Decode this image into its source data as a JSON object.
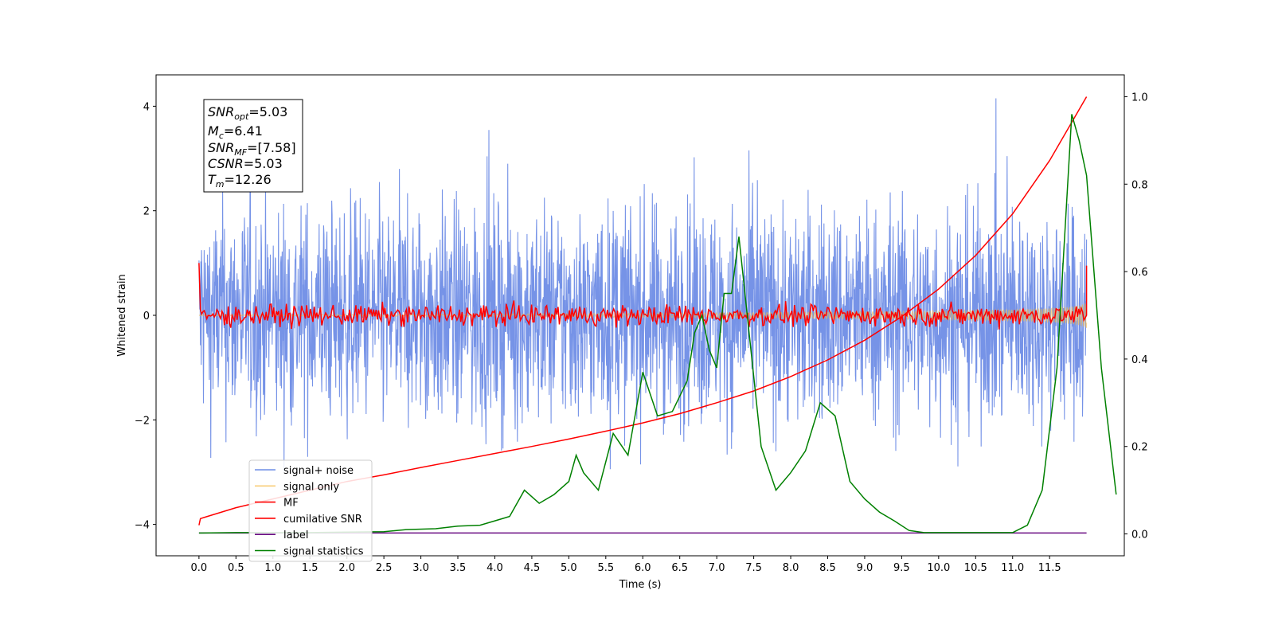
{
  "chart_data": {
    "type": "line",
    "xlabel": "Time (s)",
    "ylabel": "Whitened strain",
    "xlim": [
      -0.58,
      12.51
    ],
    "ylim": [
      -4.6,
      4.6
    ],
    "ylim_right": [
      -0.05,
      1.05
    ],
    "x_ticks": [
      "0.0",
      "0.5",
      "1.0",
      "1.5",
      "2.0",
      "2.5",
      "3.0",
      "3.5",
      "4.0",
      "4.5",
      "5.0",
      "5.5",
      "6.0",
      "6.5",
      "7.0",
      "7.5",
      "8.0",
      "8.5",
      "9.0",
      "9.5",
      "10.0",
      "10.5",
      "11.0",
      "11.5"
    ],
    "y_ticks_left": [
      "4",
      "2",
      "0",
      "−2",
      "−4"
    ],
    "y_ticks_right": [
      "1.0",
      "0.8",
      "0.6",
      "0.4",
      "0.2",
      "0.0"
    ],
    "grid": false,
    "legend_position": "lower-left",
    "annotation": {
      "snr_opt": {
        "name": "SNR",
        "sub": "opt",
        "value": "=5.03"
      },
      "mc": {
        "name": "M",
        "sub": "c",
        "value": "=6.41"
      },
      "snr_mf": {
        "name": "SNR",
        "sub": "MF",
        "value": "=[7.58]"
      },
      "csnr": {
        "name": "CSNR",
        "sub": "",
        "value": "=5.03"
      },
      "tm": {
        "name": "T",
        "sub": "m",
        "value": "=12.26"
      }
    },
    "series": [
      {
        "name": "signal+ noise",
        "color": "#6f8de6",
        "axis": "left",
        "kind": "noise",
        "envelope": 2.6,
        "time_range": [
          0,
          12.0
        ]
      },
      {
        "name": "signal only",
        "color": "#f5b942",
        "axis": "left",
        "kind": "chirp",
        "amplitude_end": 0.25,
        "time_range": [
          0,
          12.0
        ]
      },
      {
        "name": "MF",
        "color": "#ff0000",
        "axis": "left",
        "kind": "mf",
        "points": [
          [
            0,
            1.0
          ],
          [
            0.02,
            0.1
          ],
          [
            12.0,
            0.0
          ],
          [
            12.0,
            0.95
          ]
        ]
      },
      {
        "name": "cumilative SNR",
        "color": "#ff0000",
        "axis": "right",
        "points": [
          [
            0,
            0.02
          ],
          [
            0.02,
            0.035
          ],
          [
            0.5,
            0.06
          ],
          [
            1,
            0.08
          ],
          [
            1.5,
            0.1
          ],
          [
            2,
            0.12
          ],
          [
            2.5,
            0.135
          ],
          [
            3,
            0.152
          ],
          [
            3.5,
            0.168
          ],
          [
            4,
            0.184
          ],
          [
            4.5,
            0.2
          ],
          [
            5,
            0.217
          ],
          [
            5.5,
            0.235
          ],
          [
            6,
            0.254
          ],
          [
            6.5,
            0.275
          ],
          [
            7,
            0.3
          ],
          [
            7.5,
            0.327
          ],
          [
            8,
            0.36
          ],
          [
            8.5,
            0.398
          ],
          [
            9,
            0.443
          ],
          [
            9.5,
            0.497
          ],
          [
            10,
            0.56
          ],
          [
            10.5,
            0.637
          ],
          [
            11,
            0.732
          ],
          [
            11.5,
            0.854
          ],
          [
            12,
            1.0
          ]
        ]
      },
      {
        "name": "label",
        "color": "#6a0d83",
        "axis": "right",
        "points": [
          [
            0,
            0.002
          ],
          [
            12,
            0.002
          ]
        ]
      },
      {
        "name": "signal statistics",
        "color": "#008000",
        "axis": "right",
        "points": [
          [
            0,
            0.002
          ],
          [
            0.5,
            0.003
          ],
          [
            1,
            0.003
          ],
          [
            1.5,
            0.003
          ],
          [
            2,
            0.004
          ],
          [
            2.5,
            0.005
          ],
          [
            2.8,
            0.01
          ],
          [
            3.2,
            0.012
          ],
          [
            3.5,
            0.018
          ],
          [
            3.8,
            0.02
          ],
          [
            4,
            0.03
          ],
          [
            4.2,
            0.04
          ],
          [
            4.4,
            0.1
          ],
          [
            4.6,
            0.07
          ],
          [
            4.8,
            0.09
          ],
          [
            5,
            0.12
          ],
          [
            5.1,
            0.18
          ],
          [
            5.2,
            0.14
          ],
          [
            5.4,
            0.1
          ],
          [
            5.6,
            0.23
          ],
          [
            5.8,
            0.18
          ],
          [
            6.0,
            0.37
          ],
          [
            6.2,
            0.27
          ],
          [
            6.4,
            0.28
          ],
          [
            6.6,
            0.35
          ],
          [
            6.7,
            0.46
          ],
          [
            6.8,
            0.5
          ],
          [
            6.9,
            0.42
          ],
          [
            7.0,
            0.38
          ],
          [
            7.1,
            0.55
          ],
          [
            7.2,
            0.55
          ],
          [
            7.3,
            0.68
          ],
          [
            7.4,
            0.52
          ],
          [
            7.5,
            0.36
          ],
          [
            7.6,
            0.2
          ],
          [
            7.8,
            0.1
          ],
          [
            8.0,
            0.14
          ],
          [
            8.2,
            0.19
          ],
          [
            8.4,
            0.3
          ],
          [
            8.6,
            0.27
          ],
          [
            8.8,
            0.12
          ],
          [
            9.0,
            0.08
          ],
          [
            9.2,
            0.05
          ],
          [
            9.4,
            0.03
          ],
          [
            9.6,
            0.008
          ],
          [
            9.8,
            0.003
          ],
          [
            10,
            0.003
          ],
          [
            10.5,
            0.003
          ],
          [
            11,
            0.003
          ],
          [
            11.2,
            0.02
          ],
          [
            11.4,
            0.1
          ],
          [
            11.6,
            0.38
          ],
          [
            11.8,
            0.96
          ],
          [
            11.9,
            0.9
          ],
          [
            12.0,
            0.82
          ],
          [
            12.2,
            0.38
          ],
          [
            12.4,
            0.09
          ]
        ]
      }
    ]
  }
}
